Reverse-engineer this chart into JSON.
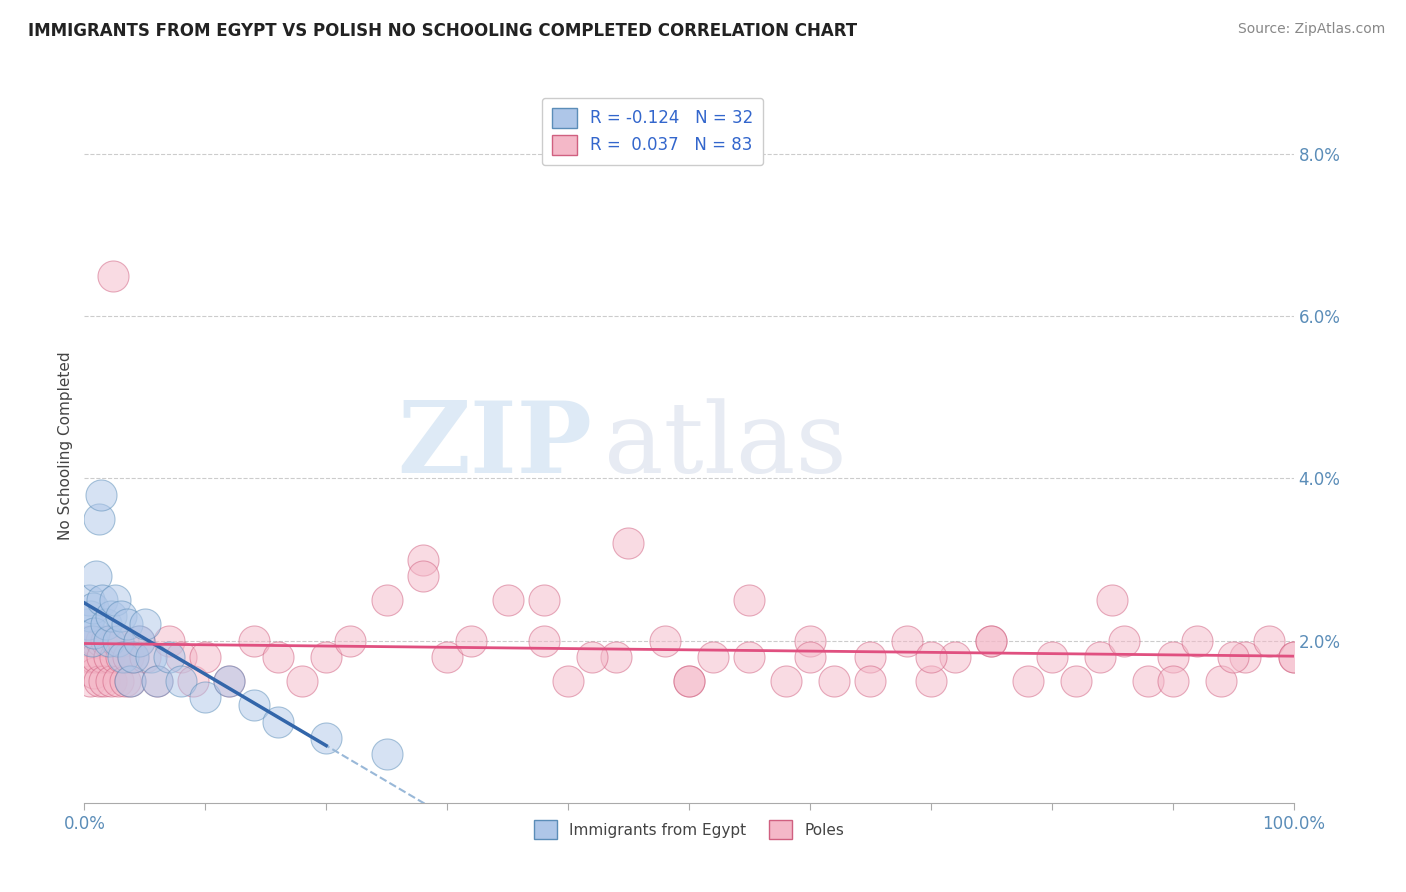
{
  "title": "IMMIGRANTS FROM EGYPT VS POLISH NO SCHOOLING COMPLETED CORRELATION CHART",
  "source": "Source: ZipAtlas.com",
  "ylabel": "No Schooling Completed",
  "xlim": [
    0,
    100
  ],
  "ylim": [
    0,
    8.8
  ],
  "yticks": [
    0,
    2,
    4,
    6,
    8
  ],
  "ytick_labels": [
    "",
    "2.0%",
    "4.0%",
    "6.0%",
    "8.0%"
  ],
  "xtick_labels": [
    "0.0%",
    "",
    "",
    "",
    "",
    "",
    "",
    "",
    "",
    "",
    "100.0%"
  ],
  "legend_egypt_R": "-0.124",
  "legend_egypt_N": "32",
  "legend_poles_R": "0.037",
  "legend_poles_N": "83",
  "egypt_color": "#aec6e8",
  "egypt_edge_color": "#5b8db8",
  "poles_color": "#f4b8c8",
  "poles_edge_color": "#d06080",
  "egypt_line_color": "#3366aa",
  "poles_line_color": "#e05080",
  "dashed_line_color": "#99b8d8",
  "watermark_zip": "ZIP",
  "watermark_atlas": "atlas",
  "background_color": "#ffffff",
  "grid_color": "#cccccc",
  "title_color": "#222222",
  "source_color": "#888888",
  "ylabel_color": "#444444",
  "egypt_x": [
    0.3,
    0.4,
    0.5,
    0.6,
    0.7,
    0.8,
    1.0,
    1.2,
    1.4,
    1.5,
    1.8,
    2.0,
    2.2,
    2.5,
    2.8,
    3.0,
    3.2,
    3.5,
    3.8,
    4.0,
    4.5,
    5.0,
    5.5,
    6.0,
    7.0,
    8.0,
    10.0,
    12.0,
    14.0,
    16.0,
    20.0,
    25.0
  ],
  "egypt_y": [
    2.2,
    2.5,
    2.3,
    2.0,
    2.4,
    2.1,
    2.8,
    3.5,
    3.8,
    2.5,
    2.2,
    2.0,
    2.3,
    2.5,
    2.0,
    2.3,
    1.8,
    2.2,
    1.5,
    1.8,
    2.0,
    2.2,
    1.8,
    1.5,
    1.8,
    1.5,
    1.3,
    1.5,
    1.2,
    1.0,
    0.8,
    0.6
  ],
  "poles_x": [
    0.2,
    0.4,
    0.5,
    0.6,
    0.8,
    0.9,
    1.0,
    1.2,
    1.4,
    1.5,
    1.6,
    1.8,
    2.0,
    2.2,
    2.4,
    2.5,
    2.6,
    2.8,
    3.0,
    3.2,
    3.4,
    3.6,
    3.8,
    4.0,
    4.5,
    5.0,
    6.0,
    7.0,
    8.0,
    9.0,
    10.0,
    12.0,
    14.0,
    16.0,
    18.0,
    20.0,
    22.0,
    25.0,
    28.0,
    30.0,
    35.0,
    38.0,
    40.0,
    44.0,
    48.0,
    50.0,
    52.0,
    55.0,
    58.0,
    60.0,
    62.0,
    65.0,
    68.0,
    70.0,
    72.0,
    75.0,
    78.0,
    80.0,
    82.0,
    84.0,
    86.0,
    88.0,
    90.0,
    92.0,
    94.0,
    96.0,
    98.0,
    100.0,
    45.0,
    42.0,
    38.0,
    32.0,
    28.0,
    50.0,
    55.0,
    60.0,
    65.0,
    70.0,
    75.0,
    85.0,
    90.0,
    95.0,
    100.0
  ],
  "poles_y": [
    1.8,
    2.0,
    1.5,
    1.8,
    1.6,
    2.0,
    1.8,
    1.5,
    2.0,
    1.8,
    1.5,
    2.0,
    1.8,
    1.5,
    6.5,
    1.8,
    2.0,
    1.5,
    1.8,
    2.0,
    1.5,
    1.8,
    1.5,
    1.8,
    2.0,
    1.8,
    1.5,
    2.0,
    1.8,
    1.5,
    1.8,
    1.5,
    2.0,
    1.8,
    1.5,
    1.8,
    2.0,
    2.5,
    3.0,
    1.8,
    2.5,
    2.0,
    1.5,
    1.8,
    2.0,
    1.5,
    1.8,
    1.8,
    1.5,
    2.0,
    1.5,
    1.8,
    2.0,
    1.5,
    1.8,
    2.0,
    1.5,
    1.8,
    1.5,
    1.8,
    2.0,
    1.5,
    1.8,
    2.0,
    1.5,
    1.8,
    2.0,
    1.8,
    3.2,
    1.8,
    2.5,
    2.0,
    2.8,
    1.5,
    2.5,
    1.8,
    1.5,
    1.8,
    2.0,
    2.5,
    1.5,
    1.8,
    1.8
  ]
}
